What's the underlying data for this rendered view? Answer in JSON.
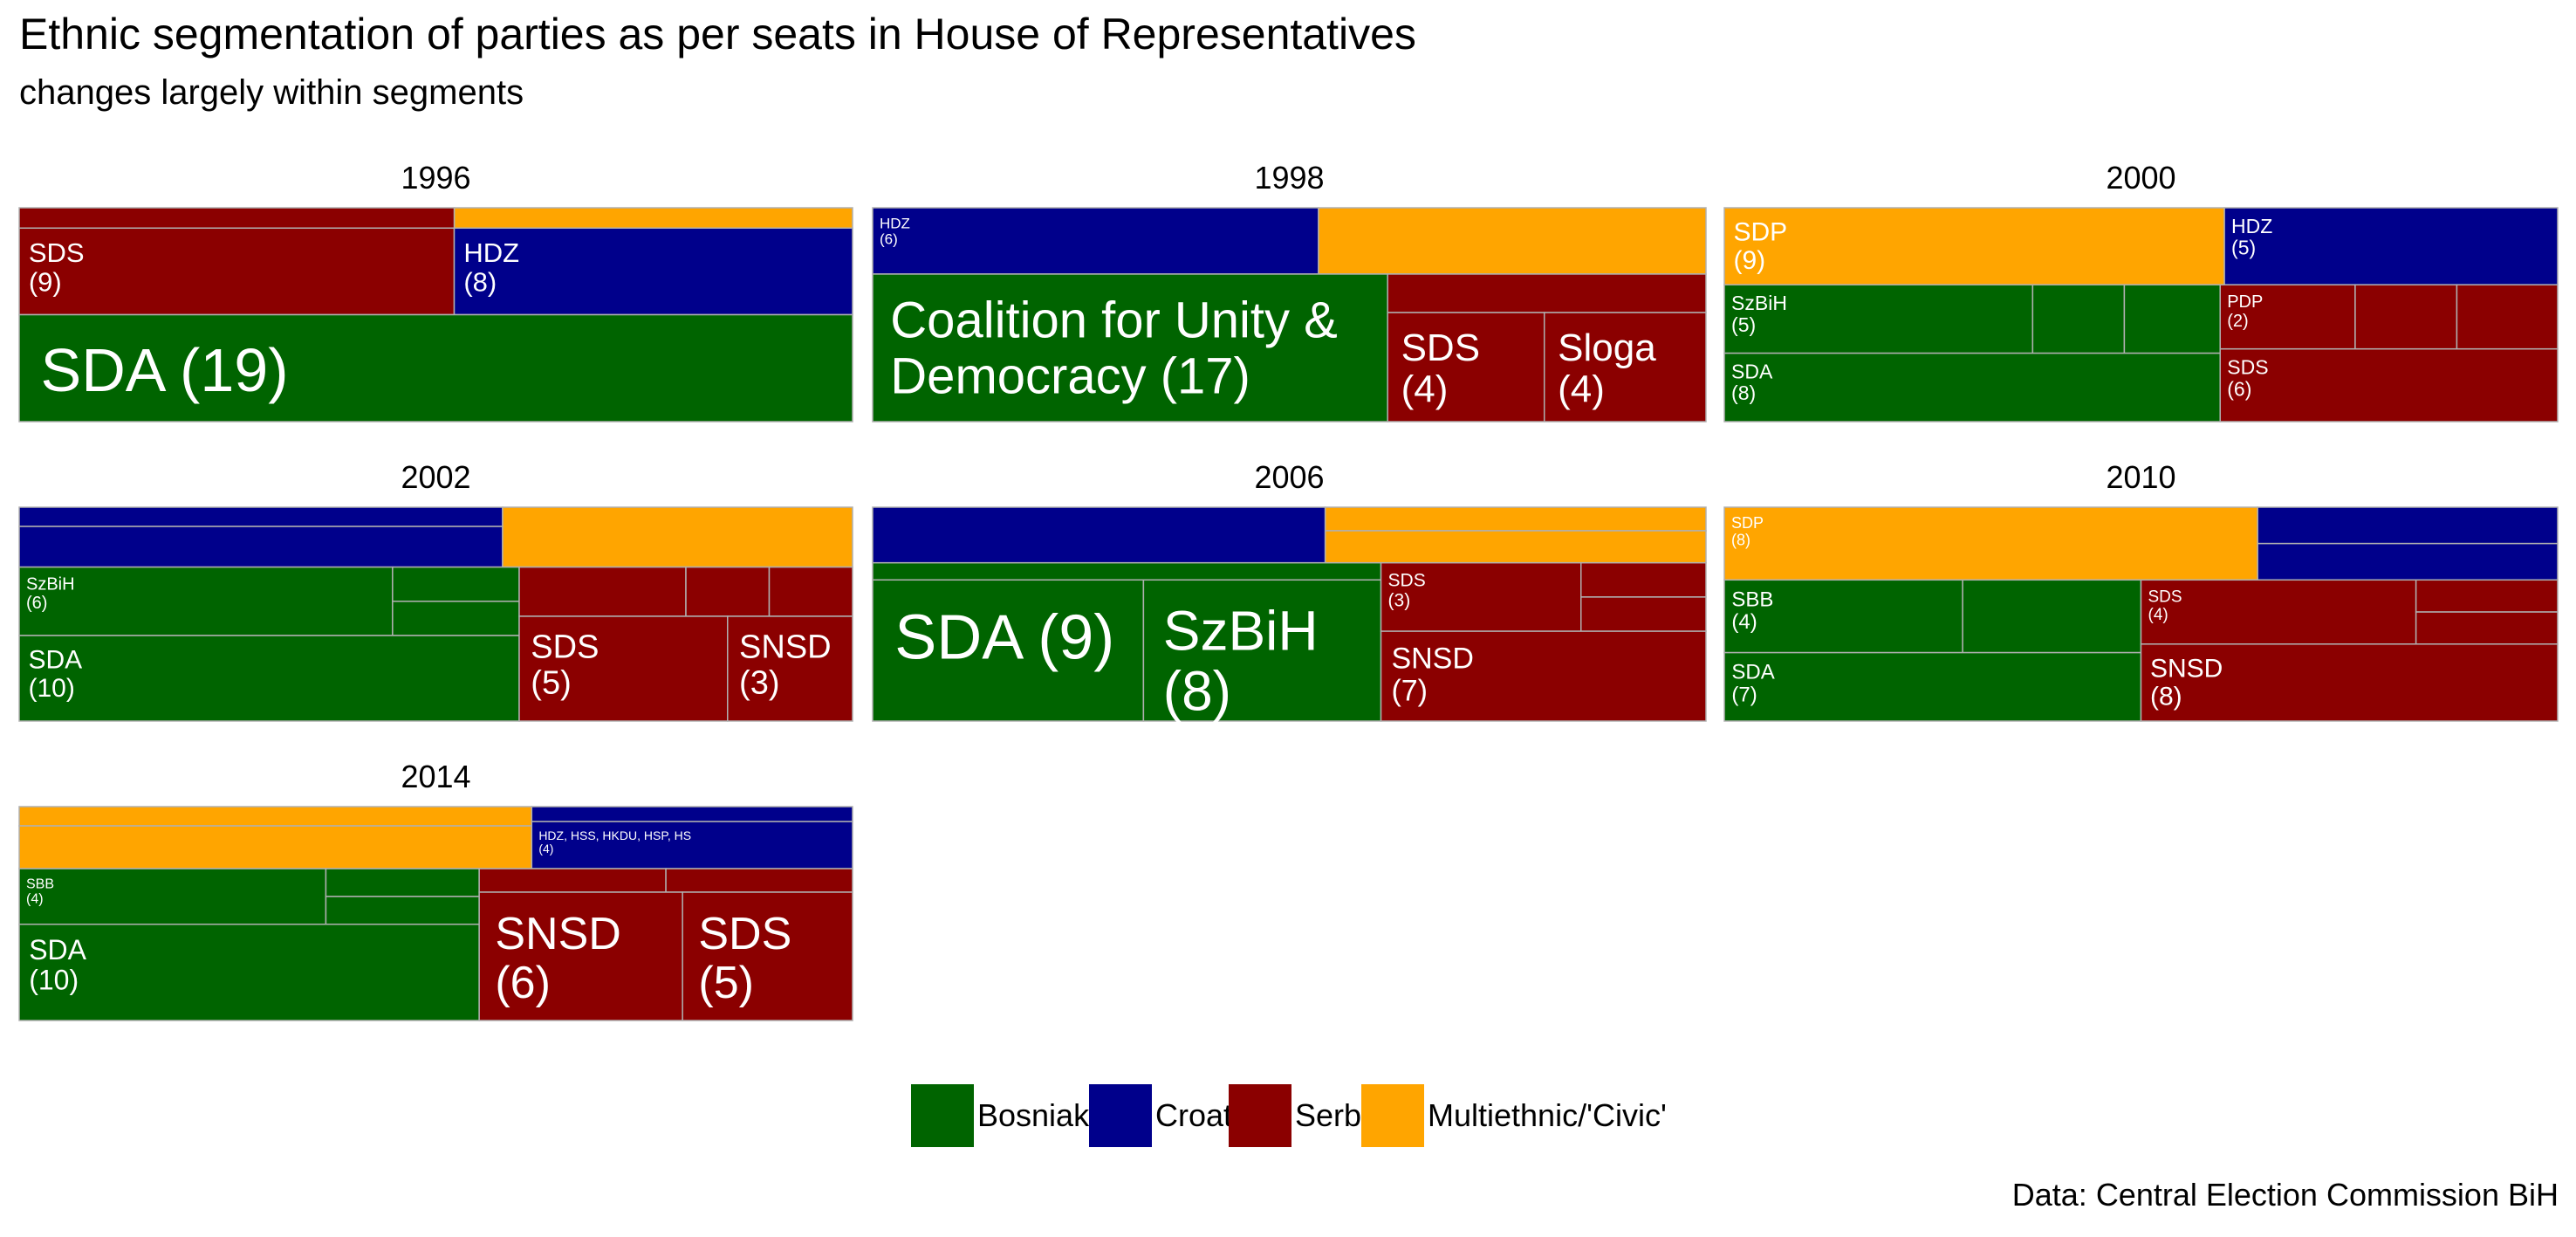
{
  "chart_data": {
    "type": "treemap",
    "title": "Ethnic segmentation of parties as per seats in House of Representatives",
    "subtitle": "changes largely within segments",
    "caption": "Data: Central Election Commission BiH",
    "colors": {
      "Bosniak": "#006400",
      "Croat": "#00008B",
      "Serb": "#8B0000",
      "Multiethnic/'Civic'": "#FFA500"
    },
    "legend": {
      "position": "bottom",
      "entries": [
        "Bosniak",
        "Croat",
        "Serb",
        "Multiethnic/'Civic'"
      ]
    },
    "panels": [
      {
        "year": "1996",
        "segments": [
          {
            "group": "Bosniak",
            "seats": 19,
            "parties": [
              {
                "label": "SDA",
                "seats": 19
              }
            ]
          },
          {
            "group": "Serb",
            "seats": 9,
            "parties": [
              {
                "label": "SDS",
                "seats": 9
              }
            ]
          },
          {
            "group": "Croat",
            "seats": 8,
            "parties": [
              {
                "label": "HDZ",
                "seats": 8
              }
            ]
          },
          {
            "group": "Multiethnic/'Civic'",
            "seats": 2,
            "parties": []
          }
        ]
      },
      {
        "year": "1998",
        "segments": [
          {
            "group": "Bosniak",
            "seats": 17,
            "parties": [
              {
                "label": "Coalition for Unity & Democracy",
                "seats": 17
              }
            ]
          },
          {
            "group": "Serb",
            "seats": 10,
            "parties": [
              {
                "label": "SDS",
                "seats": 4
              },
              {
                "label": "Sloga",
                "seats": 4
              }
            ]
          },
          {
            "group": "Croat",
            "seats": 6,
            "parties": [
              {
                "label": "HDZ",
                "seats": 6
              }
            ]
          },
          {
            "group": "Multiethnic/'Civic'",
            "seats": 5,
            "parties": []
          }
        ]
      },
      {
        "year": "2000",
        "segments": [
          {
            "group": "Bosniak",
            "seats": 13,
            "parties": [
              {
                "label": "SDA",
                "seats": 8
              },
              {
                "label": "SzBiH",
                "seats": 5
              }
            ]
          },
          {
            "group": "Serb",
            "seats": 10,
            "parties": [
              {
                "label": "SDS",
                "seats": 6
              },
              {
                "label": "PDP",
                "seats": 2
              }
            ]
          },
          {
            "group": "Multiethnic/'Civic'",
            "seats": 9,
            "parties": [
              {
                "label": "SDP",
                "seats": 9
              }
            ]
          },
          {
            "group": "Croat",
            "seats": 6,
            "parties": [
              {
                "label": "HDZ",
                "seats": 5
              }
            ]
          }
        ]
      },
      {
        "year": "2002",
        "segments": [
          {
            "group": "Bosniak",
            "seats": 18,
            "parties": [
              {
                "label": "SDA",
                "seats": 10
              },
              {
                "label": "SzBiH",
                "seats": 6
              }
            ]
          },
          {
            "group": "Serb",
            "seats": 10,
            "parties": [
              {
                "label": "SDS",
                "seats": 5
              },
              {
                "label": "SNSD",
                "seats": 3
              }
            ]
          },
          {
            "group": "Croat",
            "seats": 6,
            "parties": []
          },
          {
            "group": "Multiethnic/'Civic'",
            "seats": 4,
            "parties": []
          }
        ]
      },
      {
        "year": "2006",
        "segments": [
          {
            "group": "Bosniak",
            "seats": 18,
            "parties": [
              {
                "label": "SDA",
                "seats": 9
              },
              {
                "label": "SzBiH",
                "seats": 8
              }
            ]
          },
          {
            "group": "Serb",
            "seats": 11,
            "parties": [
              {
                "label": "SNSD",
                "seats": 7
              },
              {
                "label": "SDS",
                "seats": 3
              }
            ]
          },
          {
            "group": "Multiethnic/'Civic'",
            "seats": 5,
            "parties": []
          },
          {
            "group": "Croat",
            "seats": 4,
            "parties": []
          }
        ]
      },
      {
        "year": "2010",
        "segments": [
          {
            "group": "Bosniak",
            "seats": 13,
            "parties": [
              {
                "label": "SDA",
                "seats": 7
              },
              {
                "label": "SBB",
                "seats": 4
              }
            ]
          },
          {
            "group": "Serb",
            "seats": 13,
            "parties": [
              {
                "label": "SNSD",
                "seats": 8
              },
              {
                "label": "SDS",
                "seats": 4
              }
            ]
          },
          {
            "group": "Multiethnic/'Civic'",
            "seats": 8,
            "parties": [
              {
                "label": "SDP",
                "seats": 8
              }
            ]
          },
          {
            "group": "Croat",
            "seats": 4,
            "parties": []
          }
        ]
      },
      {
        "year": "2014",
        "segments": [
          {
            "group": "Bosniak",
            "seats": 16,
            "parties": [
              {
                "label": "SDA",
                "seats": 10
              },
              {
                "label": "SBB",
                "seats": 4
              }
            ]
          },
          {
            "group": "Serb",
            "seats": 12,
            "parties": [
              {
                "label": "SNSD",
                "seats": 6
              },
              {
                "label": "SDS",
                "seats": 5
              }
            ]
          },
          {
            "group": "Multiethnic/'Civic'",
            "seats": 6,
            "parties": []
          },
          {
            "group": "Croat",
            "seats": 4,
            "parties": [
              {
                "label": "HDZ, HSS, HKDU, HSP, HS",
                "seats": 4
              }
            ]
          }
        ]
      }
    ]
  }
}
